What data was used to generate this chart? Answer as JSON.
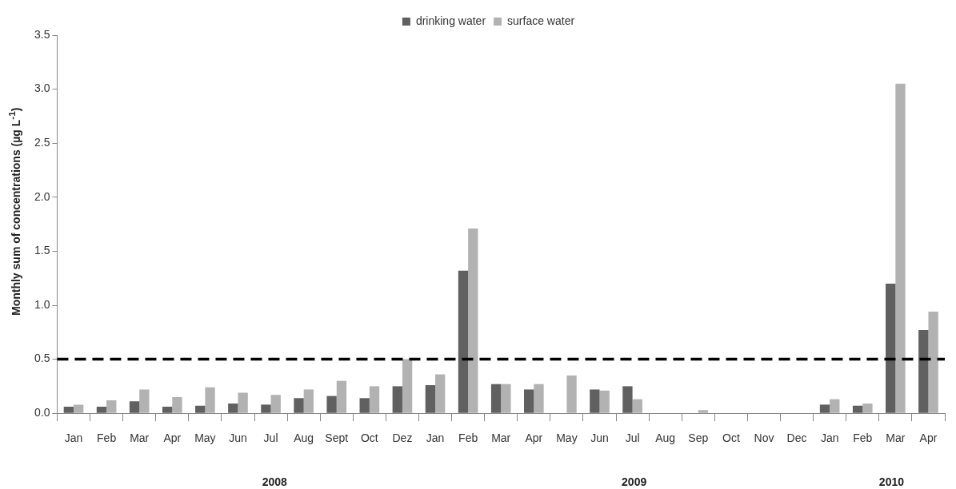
{
  "chart_data": {
    "type": "bar",
    "ylabel": "Monthly sum of concentrations (µg L$^{-1}$)",
    "categories": [
      "Jan",
      "Feb",
      "Mar",
      "Apr",
      "May",
      "Jun",
      "Jul",
      "Aug",
      "Sept",
      "Oct",
      "Dez",
      "Jan",
      "Feb",
      "Mar",
      "Apr",
      "May",
      "Jun",
      "Jul",
      "Aug",
      "Sep",
      "Oct",
      "Nov",
      "Dec",
      "Jan",
      "Feb",
      "Mar",
      "Apr"
    ],
    "series": [
      {
        "name": "drinking water",
        "color": "#606060",
        "values": [
          0.06,
          0.06,
          0.11,
          0.06,
          0.07,
          0.09,
          0.08,
          0.14,
          0.16,
          0.14,
          0.25,
          0.26,
          1.32,
          0.27,
          0.22,
          0,
          0.22,
          0.25,
          0,
          0,
          0,
          0,
          0,
          0.08,
          0.07,
          1.2,
          0.77
        ]
      },
      {
        "name": "surface water",
        "color": "#b2b2b2",
        "values": [
          0.08,
          0.12,
          0.22,
          0.15,
          0.24,
          0.19,
          0.17,
          0.22,
          0.3,
          0.25,
          0.5,
          0.36,
          1.71,
          0.27,
          0.27,
          0.35,
          0.21,
          0.13,
          0,
          0.03,
          0,
          0,
          0,
          0.13,
          0.09,
          3.05,
          0.94
        ]
      }
    ],
    "ylim": [
      0,
      3.5
    ],
    "yticks": [
      {
        "value": 0,
        "label": "0.0"
      },
      {
        "value": 0.5,
        "label": "0.5"
      },
      {
        "value": 1,
        "label": "1.0"
      },
      {
        "value": 1.5,
        "label": "1.5"
      },
      {
        "value": 2,
        "label": "2.0"
      },
      {
        "value": 2.5,
        "label": "2.5"
      },
      {
        "value": 3,
        "label": "3.0"
      },
      {
        "value": 3.5,
        "label": "3.5"
      }
    ],
    "grid": false,
    "legend": "top",
    "ref_lines": [
      {
        "axis": "y",
        "value": 0.5,
        "color": "#000000",
        "line_style": "dashed"
      }
    ],
    "annotations": [
      "2008",
      "2009",
      "2010"
    ]
  }
}
